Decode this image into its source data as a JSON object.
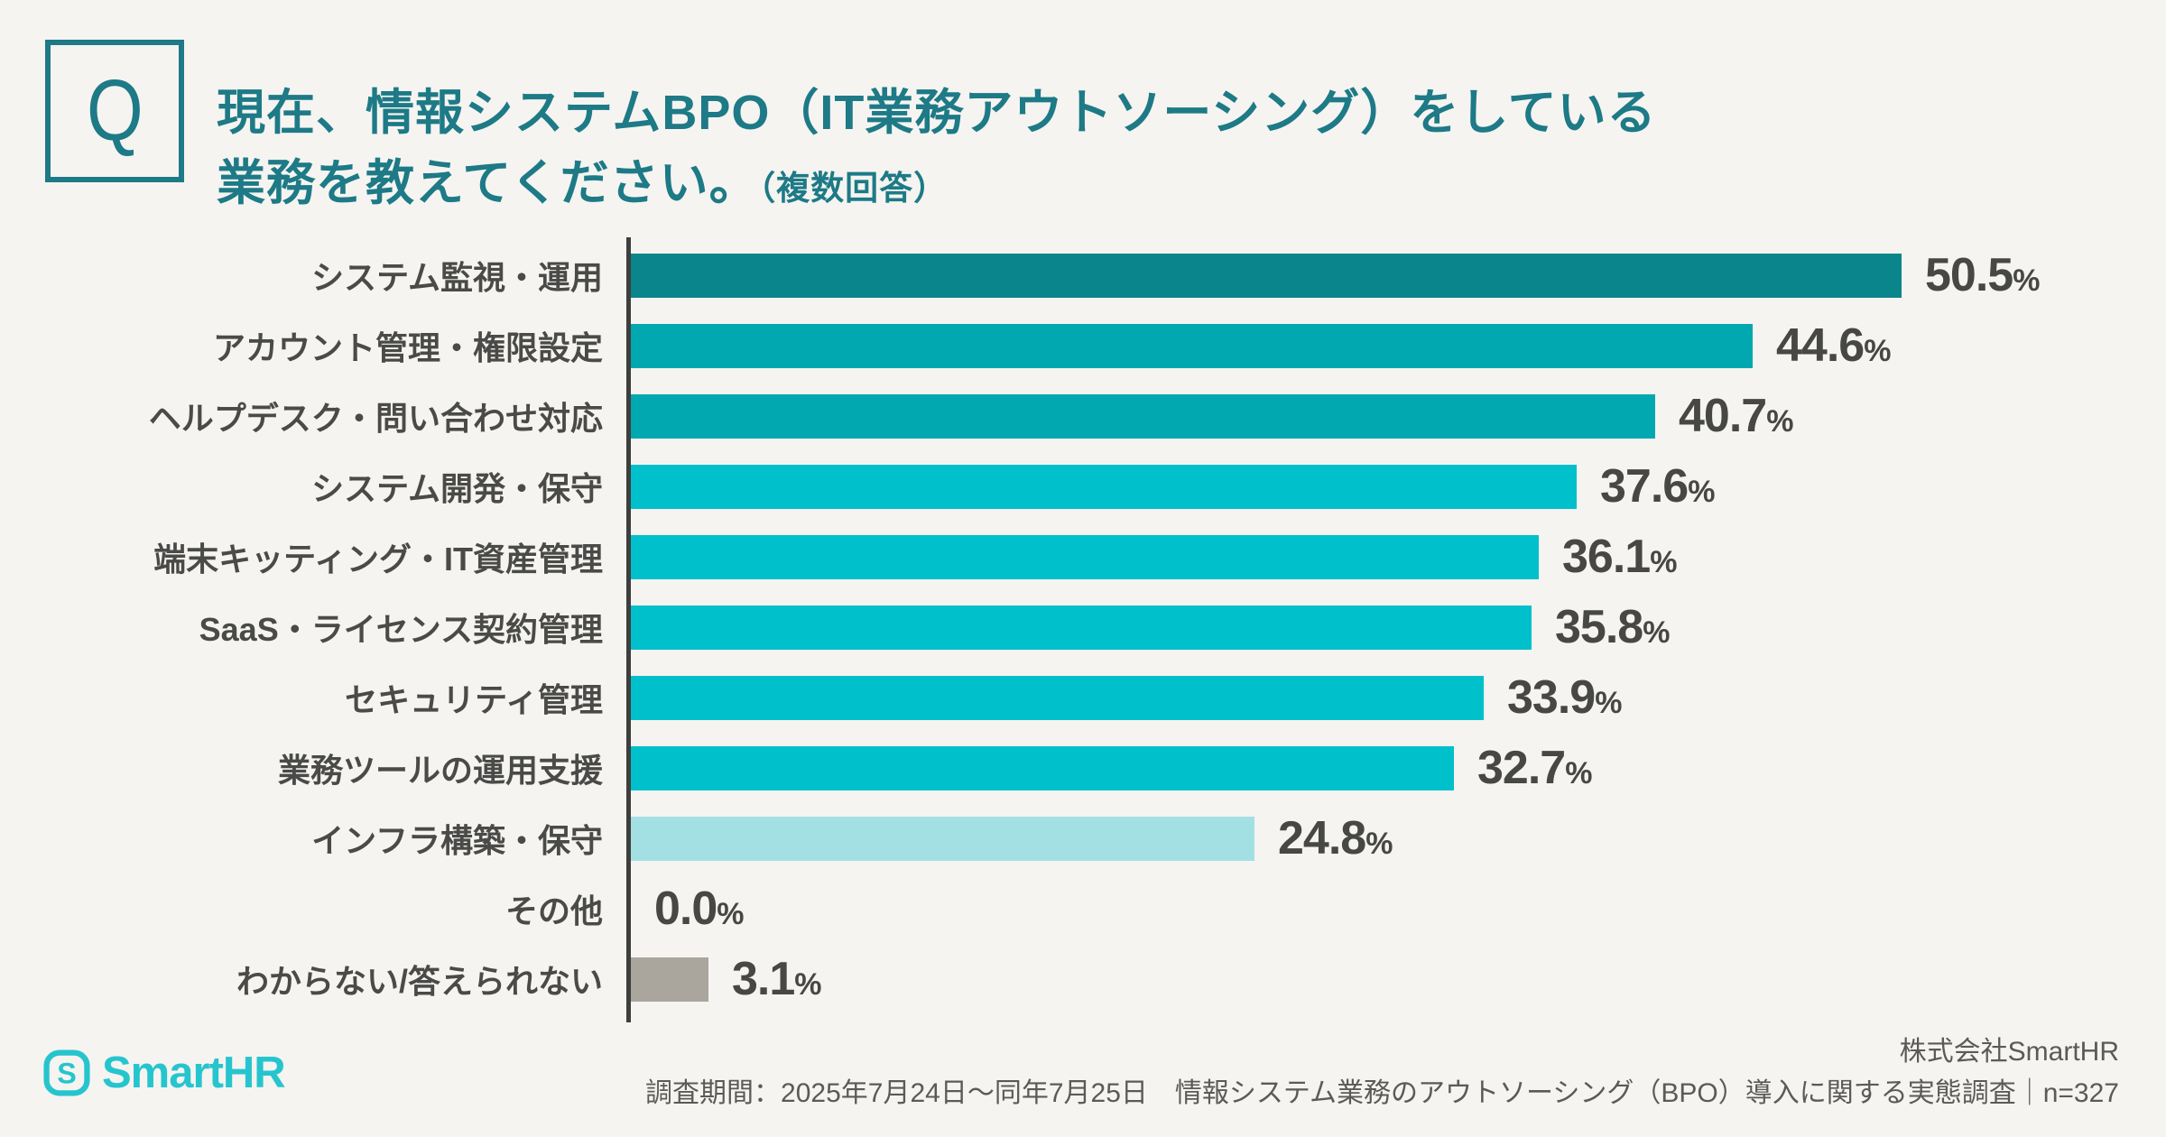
{
  "header": {
    "q_label": "Q",
    "title_line1": "現在、情報システムBPO（IT業務アウトソーシング）をしている",
    "title_line2": "業務を教えてください。",
    "title_note": "（複数回答）"
  },
  "chart_data": {
    "type": "bar",
    "orientation": "horizontal",
    "value_unit": "%",
    "xlim": [
      0,
      55
    ],
    "grid": false,
    "legend": false,
    "categories": [
      "システム監視・運用",
      "アカウント管理・権限設定",
      "ヘルプデスク・問い合わせ対応",
      "システム開発・保守",
      "端末キッティング・IT資産管理",
      "SaaS・ライセンス契約管理",
      "セキュリティ管理",
      "業務ツールの運用支援",
      "インフラ構築・保守",
      "その他",
      "わからない/答えられない"
    ],
    "values": [
      50.5,
      44.6,
      40.7,
      37.6,
      36.1,
      35.8,
      33.9,
      32.7,
      24.8,
      0.0,
      3.1
    ],
    "bar_colors": [
      "#0a858b",
      "#02a8b0",
      "#02a8b0",
      "#00c0cb",
      "#00c0cb",
      "#00c0cb",
      "#00c0cb",
      "#00c0cb",
      "#a3e0e3",
      "#00c0cb",
      "#aaa59d"
    ],
    "axis_color": "#3e3e3c",
    "category_label_color": "#4a4a48",
    "value_label_color": "#474744"
  },
  "footer": {
    "logo_text": "SmartHR",
    "logo_color": "#26c5ce",
    "company": "株式会社SmartHR",
    "survey_info": "調査期間：2025年7月24日～同年7月25日　情報システム業務のアウトソーシング（BPO）導入に関する実態調査｜n=327"
  },
  "colors": {
    "background": "#f5f4f1",
    "title": "#1d7a86"
  }
}
